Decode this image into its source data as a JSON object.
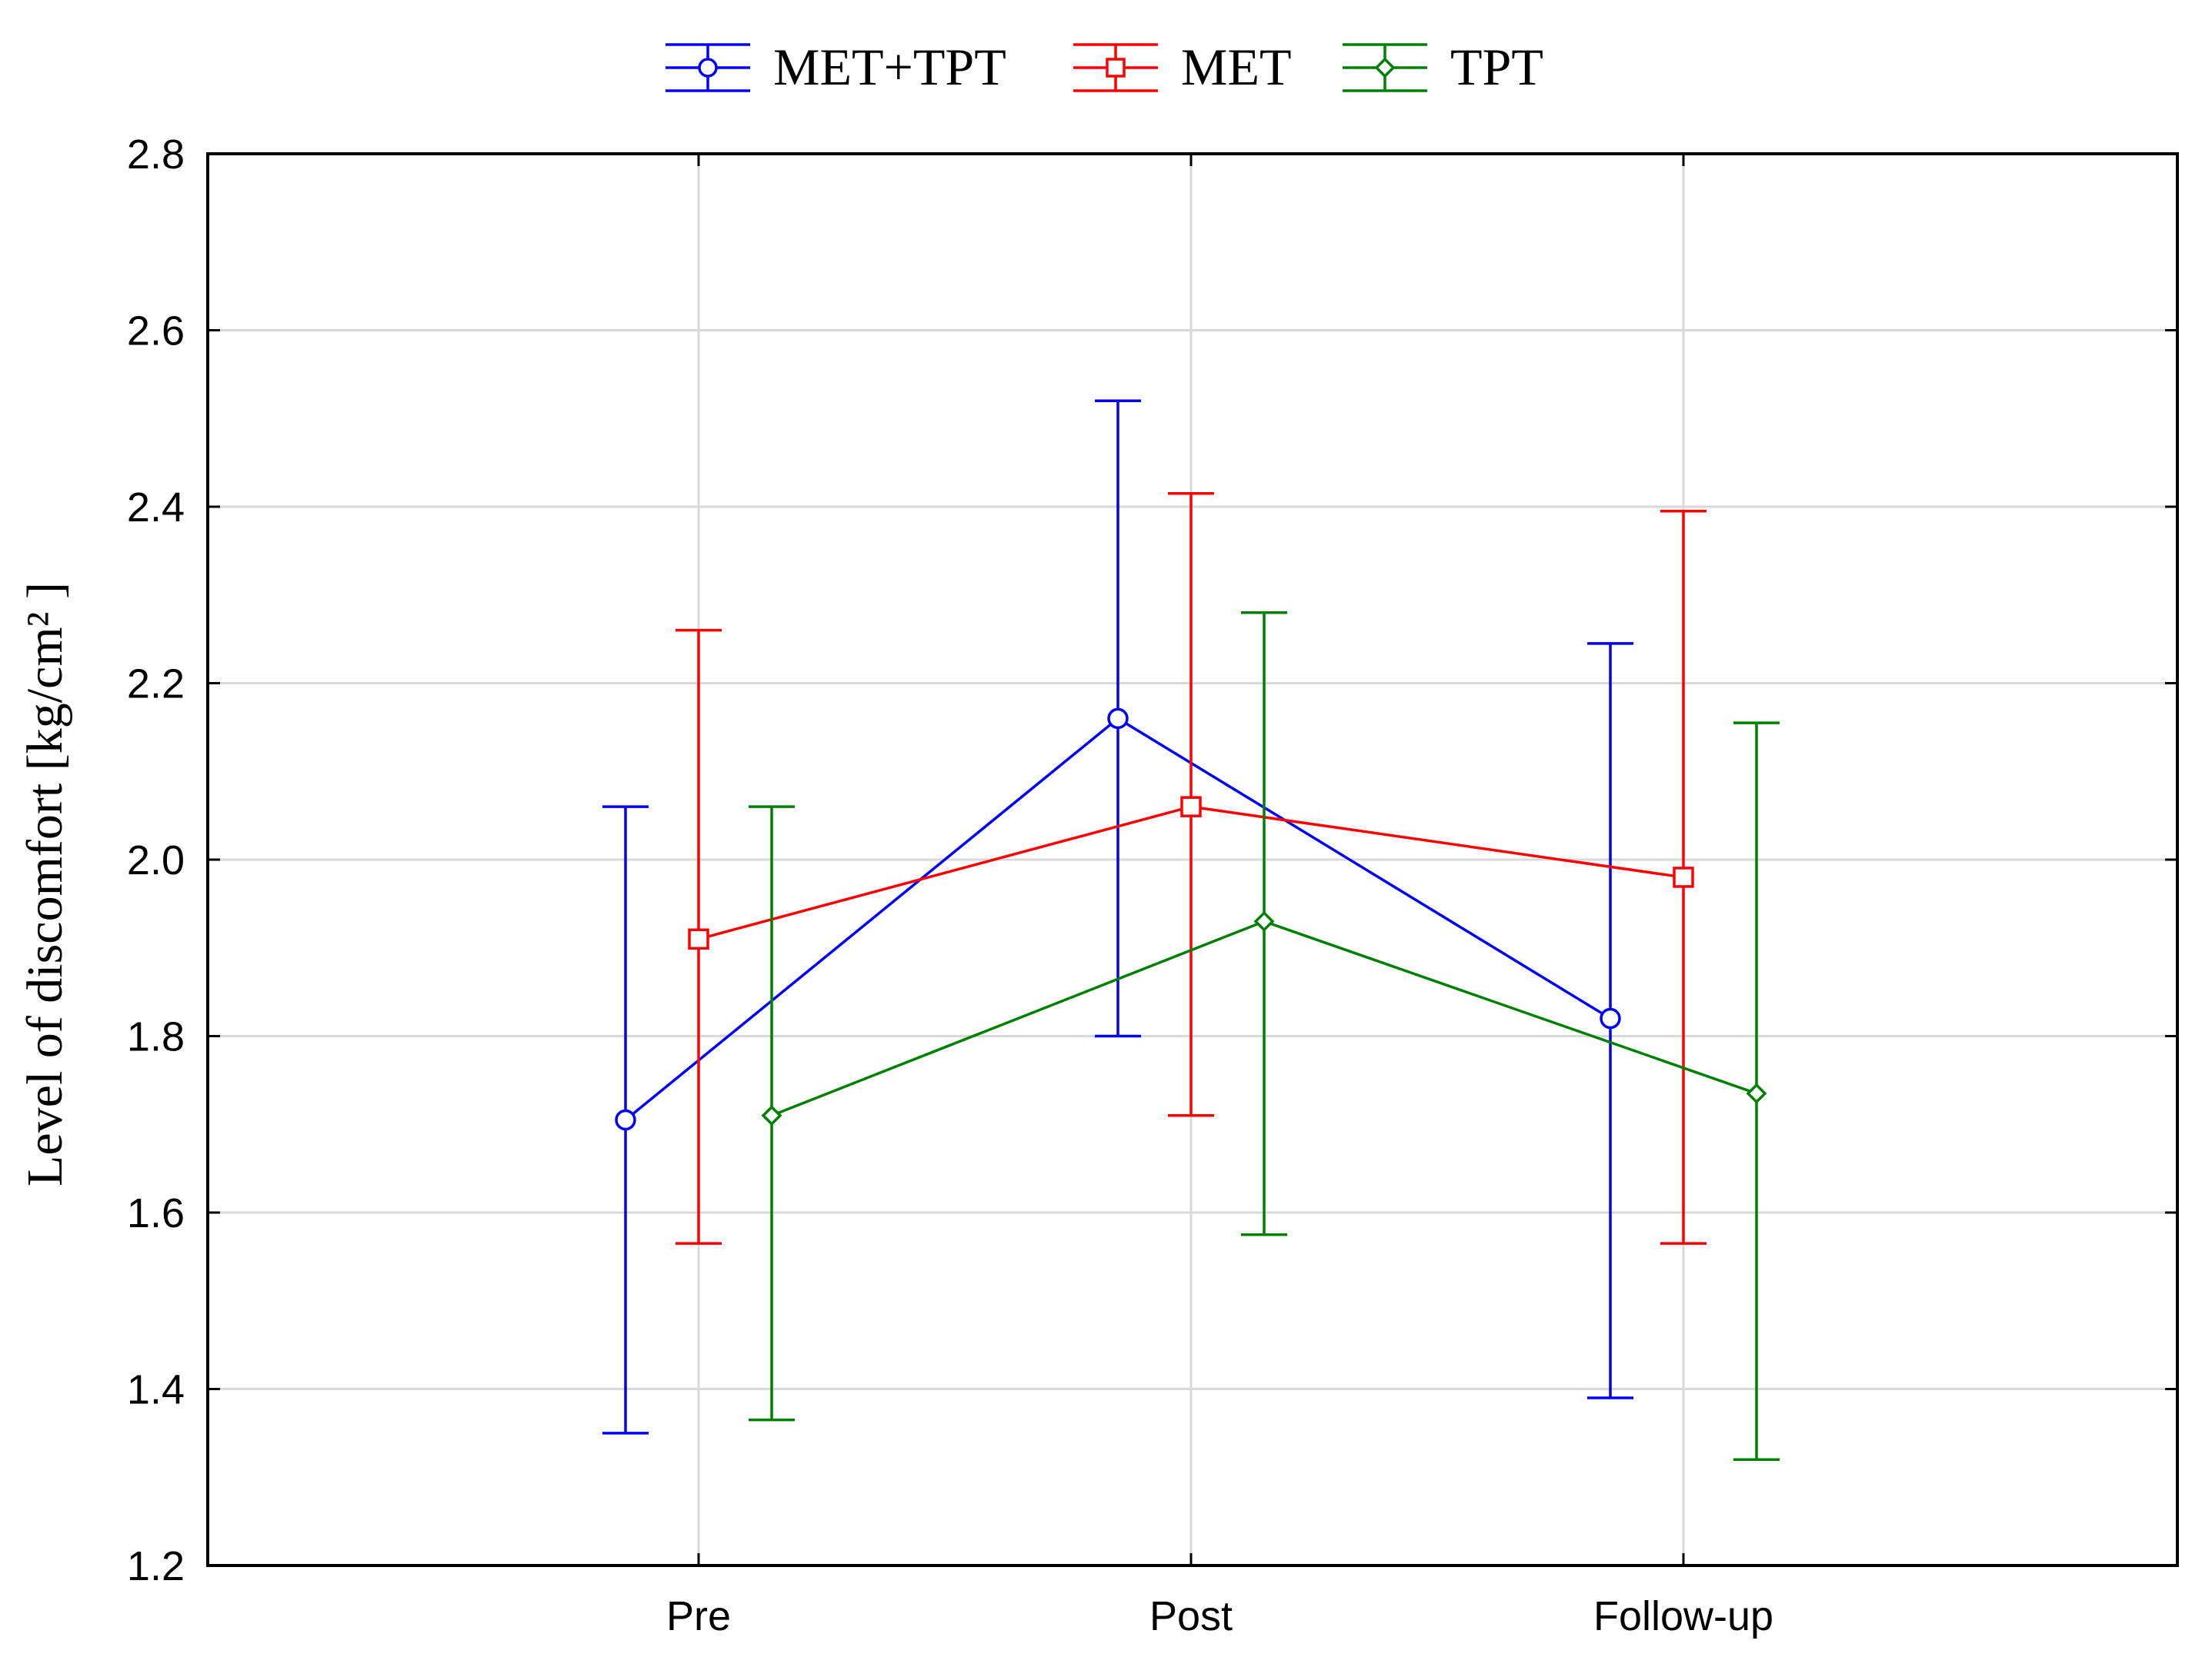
{
  "chart_data": {
    "type": "line",
    "categories": [
      "Pre",
      "Post",
      "Follow-up"
    ],
    "ylabel": "Level of discomfort [kg/cm² ]",
    "xlabel": "",
    "ylim": [
      1.2,
      2.8
    ],
    "yticks": [
      "1.2",
      "1.4",
      "1.6",
      "1.8",
      "2.0",
      "2.2",
      "2.4",
      "2.6",
      "2.8"
    ],
    "grid": true,
    "error_bars": true,
    "legend_position": "top-center",
    "series": [
      {
        "name": "MET+TPT",
        "color": "#0000ff",
        "marker": "circle",
        "values": [
          1.705,
          2.16,
          1.82
        ],
        "lower": [
          1.35,
          1.8,
          1.39
        ],
        "upper": [
          2.06,
          2.52,
          2.245
        ]
      },
      {
        "name": "MET",
        "color": "#ff0000",
        "marker": "square",
        "values": [
          1.91,
          2.06,
          1.98
        ],
        "lower": [
          1.565,
          1.71,
          1.565
        ],
        "upper": [
          2.26,
          2.415,
          2.395
        ]
      },
      {
        "name": "TPT",
        "color": "#008000",
        "marker": "diamond",
        "values": [
          1.71,
          1.93,
          1.735
        ],
        "lower": [
          1.365,
          1.575,
          1.32
        ],
        "upper": [
          2.06,
          2.28,
          2.155
        ]
      }
    ]
  }
}
